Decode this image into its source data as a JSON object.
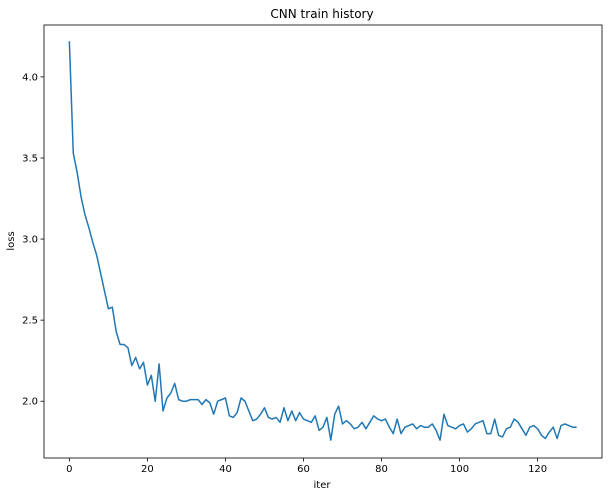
{
  "chart_data": {
    "type": "line",
    "title": "CNN train history",
    "xlabel": "iter",
    "ylabel": "loss",
    "xlim": [
      -6.5,
      136.5
    ],
    "ylim": [
      1.65,
      4.32
    ],
    "xticks": [
      0,
      20,
      40,
      60,
      80,
      100,
      120
    ],
    "yticks": [
      2.0,
      2.5,
      3.0,
      3.5,
      4.0
    ],
    "ytick_labels": [
      "2.0",
      "2.5",
      "3.0",
      "3.5",
      "4.0"
    ],
    "grid": false,
    "color": "#1f77b4",
    "series": [
      {
        "values": [
          4.22,
          3.53,
          3.41,
          3.26,
          3.15,
          3.07,
          2.98,
          2.9,
          2.79,
          2.68,
          2.57,
          2.58,
          2.43,
          2.35,
          2.35,
          2.33,
          2.22,
          2.27,
          2.2,
          2.24,
          2.1,
          2.16,
          2.0,
          2.23,
          1.94,
          2.02,
          2.05,
          2.11,
          2.01,
          2.0,
          2.0,
          2.01,
          2.01,
          2.01,
          1.98,
          2.01,
          1.99,
          1.92,
          2.0,
          2.01,
          2.02,
          1.91,
          1.9,
          1.93,
          2.02,
          2.0,
          1.94,
          1.88,
          1.89,
          1.92,
          1.96,
          1.9,
          1.89,
          1.9,
          1.87,
          1.96,
          1.88,
          1.94,
          1.88,
          1.93,
          1.89,
          1.88,
          1.87,
          1.91,
          1.82,
          1.84,
          1.9,
          1.76,
          1.92,
          1.97,
          1.86,
          1.88,
          1.86,
          1.83,
          1.84,
          1.87,
          1.83,
          1.87,
          1.91,
          1.89,
          1.88,
          1.89,
          1.84,
          1.8,
          1.89,
          1.8,
          1.84,
          1.85,
          1.86,
          1.83,
          1.85,
          1.84,
          1.84,
          1.86,
          1.82,
          1.76,
          1.92,
          1.85,
          1.84,
          1.83,
          1.85,
          1.86,
          1.81,
          1.83,
          1.86,
          1.87,
          1.88,
          1.8,
          1.8,
          1.89,
          1.79,
          1.78,
          1.83,
          1.84,
          1.89,
          1.87,
          1.83,
          1.79,
          1.84,
          1.85,
          1.83,
          1.79,
          1.77,
          1.81,
          1.84,
          1.77,
          1.85,
          1.86,
          1.85,
          1.84,
          1.84
        ]
      }
    ]
  }
}
